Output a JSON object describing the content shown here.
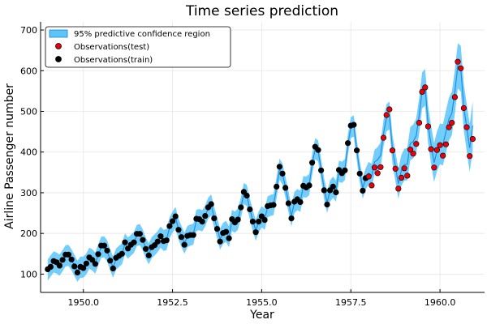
{
  "chart_data": {
    "type": "line",
    "title": "Time series prediction",
    "xlabel": "Year",
    "ylabel": "Airline Passenger number",
    "xlim": [
      1948.8,
      1961.25
    ],
    "ylim": [
      55,
      720
    ],
    "xticks": [
      1950.0,
      1952.5,
      1955.0,
      1957.5,
      1960.0
    ],
    "xtick_labels": [
      "1950.0",
      "1952.5",
      "1955.0",
      "1957.5",
      "1960.0"
    ],
    "yticks": [
      100,
      200,
      300,
      400,
      500,
      600,
      700
    ],
    "ytick_labels": [
      "100",
      "200",
      "300",
      "400",
      "500",
      "600",
      "700"
    ],
    "grid": true,
    "legend_position": "top-left",
    "legend": [
      {
        "label": "95% predictive confidence region",
        "kind": "band",
        "color": "#5cc6fa"
      },
      {
        "label": "Observations(test)",
        "kind": "marker",
        "color": "#e8000b"
      },
      {
        "label": "Observations(train)",
        "kind": "marker",
        "color": "#000000"
      }
    ],
    "colors": {
      "band": "#5cc6fa",
      "band_edge": "#1a7fd4",
      "mean": "#1f8fe0",
      "test": "#e8000b",
      "train": "#000000"
    },
    "x_start": 1949.0,
    "x_step_years": 0.0833333,
    "train_values": [
      112,
      118,
      132,
      129,
      121,
      135,
      148,
      148,
      136,
      119,
      104,
      118,
      115,
      126,
      141,
      135,
      125,
      149,
      170,
      170,
      158,
      133,
      114,
      140,
      145,
      150,
      178,
      163,
      172,
      178,
      199,
      199,
      184,
      162,
      146,
      166,
      171,
      180,
      193,
      181,
      183,
      218,
      230,
      242,
      209,
      191,
      172,
      194,
      196,
      196,
      236,
      235,
      229,
      243,
      264,
      272,
      237,
      211,
      180,
      201,
      204,
      188,
      235,
      227,
      234,
      264,
      302,
      293,
      259,
      229,
      203,
      229,
      242,
      233,
      267,
      269,
      270,
      315,
      364,
      347,
      312,
      274,
      237,
      278,
      284,
      277,
      317,
      313,
      318,
      374,
      413,
      405,
      355,
      306,
      271,
      306,
      315,
      301,
      356,
      348,
      355,
      422,
      465,
      467,
      404,
      347,
      305,
      336
    ],
    "test_values": [
      340,
      318,
      362,
      348,
      363,
      435,
      491,
      505,
      404,
      359,
      310,
      337,
      360,
      342,
      406,
      396,
      420,
      472,
      548,
      559,
      463,
      407,
      362,
      405,
      417,
      391,
      419,
      461,
      472,
      535,
      622,
      606,
      508,
      461,
      390,
      432
    ],
    "mean_train": [
      110,
      120,
      130,
      127,
      122,
      133,
      145,
      146,
      135,
      121,
      107,
      117,
      117,
      125,
      139,
      135,
      127,
      147,
      166,
      167,
      157,
      135,
      117,
      137,
      144,
      150,
      174,
      164,
      171,
      178,
      195,
      197,
      184,
      164,
      150,
      165,
      172,
      180,
      191,
      183,
      185,
      214,
      228,
      239,
      211,
      193,
      176,
      192,
      196,
      198,
      232,
      234,
      231,
      243,
      262,
      270,
      240,
      214,
      186,
      200,
      205,
      192,
      232,
      228,
      235,
      263,
      298,
      293,
      260,
      232,
      208,
      228,
      241,
      235,
      265,
      269,
      271,
      312,
      358,
      346,
      314,
      278,
      243,
      276,
      283,
      279,
      315,
      314,
      320,
      370,
      408,
      403,
      357,
      310,
      276,
      304,
      314,
      304,
      353,
      350,
      357,
      418,
      460,
      464,
      405,
      352,
      311,
      334
    ],
    "mean_test": [
      348,
      342,
      376,
      381,
      392,
      446,
      484,
      490,
      407,
      364,
      322,
      355,
      369,
      370,
      421,
      426,
      440,
      490,
      552,
      559,
      468,
      418,
      374,
      402,
      420,
      418,
      450,
      481,
      495,
      548,
      612,
      605,
      511,
      460,
      410,
      465
    ],
    "band_halfwidth_train": 26,
    "band_halfwidth_test_start": 28,
    "band_halfwidth_test_end": 60
  }
}
